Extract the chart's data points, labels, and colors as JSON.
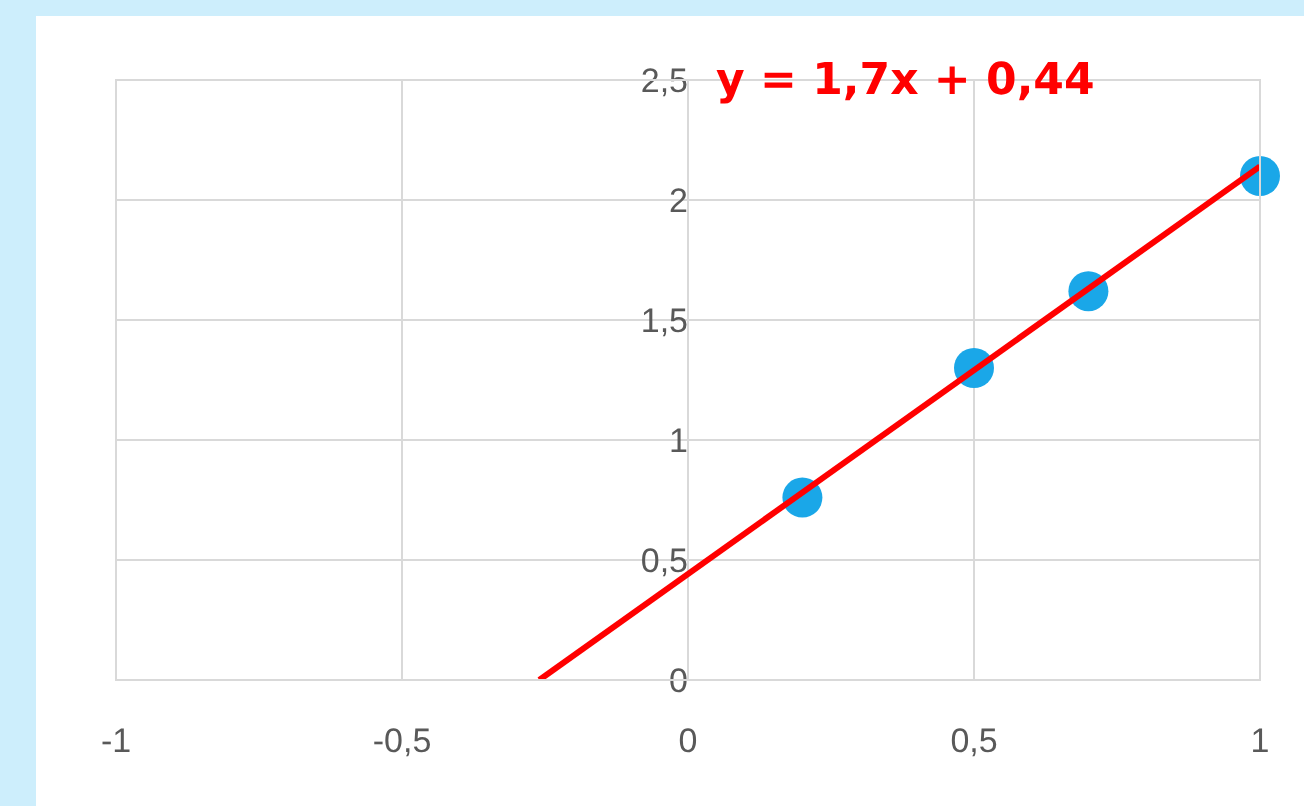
{
  "chart_data": {
    "type": "scatter",
    "annotations": [
      "y = 1,7x + 0,44"
    ],
    "xlim": [
      -1,
      1
    ],
    "xticks": [
      -1,
      {
        "value": -0.5,
        "label": "-0,5"
      },
      0,
      {
        "value": 0.5,
        "label": "0,5"
      },
      1
    ],
    "ylim": [
      0,
      2.5
    ],
    "yticks": [
      0,
      {
        "value": 0.5,
        "label": "0,5"
      },
      1,
      {
        "value": 1.5,
        "label": "1,5"
      },
      2,
      {
        "value": 2.5,
        "label": "2,5"
      }
    ],
    "grid": true,
    "series": [
      {
        "type": "line",
        "color": "#ff0000",
        "x": [
          -0.26,
          1
        ],
        "values": [
          0,
          2.14
        ],
        "line_style": "solid",
        "marker": "none"
      },
      {
        "color": "#1aa7e8",
        "marker": "circle",
        "x": [
          0.2,
          0.5,
          0.7,
          1
        ],
        "values": [
          0.76,
          1.3,
          1.62,
          2.1
        ]
      }
    ]
  }
}
